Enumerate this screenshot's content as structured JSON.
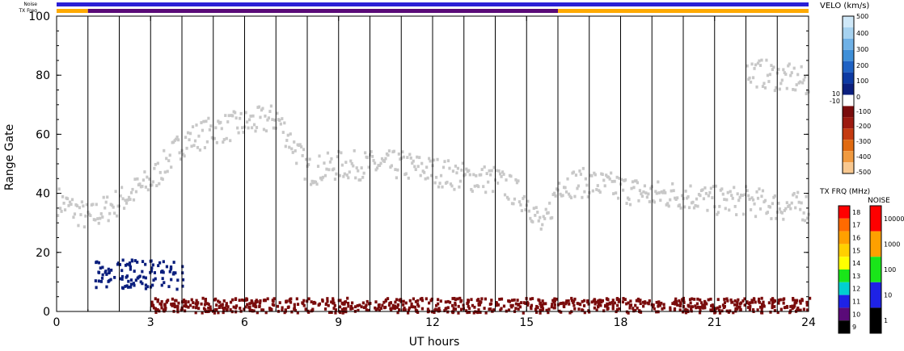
{
  "header": {
    "noise_label": "Noise",
    "txfreq_label": "TX Freq"
  },
  "chart_data": {
    "type": "heatmap",
    "xlabel": "UT hours",
    "ylabel": "Range Gate",
    "xlim": [
      0,
      24
    ],
    "ylim": [
      0,
      100
    ],
    "x_ticks": [
      "0",
      "3",
      "6",
      "9",
      "12",
      "15",
      "18",
      "21",
      "24"
    ],
    "y_ticks": [
      "0",
      "20",
      "40",
      "60",
      "80",
      "100"
    ],
    "scan_boundaries_ut": [
      1,
      2,
      3,
      4,
      5,
      6,
      7,
      8,
      9,
      10,
      11,
      12,
      13,
      14,
      15,
      16,
      17,
      18,
      19,
      20,
      21,
      22,
      23
    ],
    "status_bars": {
      "noise": {
        "color": "#2b1fd6",
        "segments": [
          {
            "from": 0,
            "to": 24
          }
        ]
      },
      "tx_freq": {
        "segments": [
          {
            "from": 0,
            "to": 1,
            "color": "#ffaa00"
          },
          {
            "from": 1,
            "to": 16,
            "color": "#5a0a78"
          },
          {
            "from": 16,
            "to": 24,
            "color": "#ffaa00"
          }
        ]
      }
    },
    "velocity_scale": {
      "title": "VELO (km/s)",
      "labels": [
        "500",
        "400",
        "300",
        "200",
        "100",
        "10",
        "0",
        "-10",
        "-100",
        "-200",
        "-300",
        "-400",
        "-500"
      ],
      "colors_top_to_bottom": [
        "#cfe8f8",
        "#a6d2f0",
        "#6fb1e6",
        "#3f8fd8",
        "#1f62c4",
        "#0d3aa3",
        "#0b1f7e",
        "#ffffff",
        "#7a0c0c",
        "#9c1a10",
        "#c43a10",
        "#e06a10",
        "#f09a40",
        "#f8c890"
      ]
    },
    "tx_freq_scale": {
      "title": "TX FRQ (MHz)",
      "labels": [
        "18",
        "17",
        "16",
        "15",
        "14",
        "13",
        "12",
        "11",
        "10",
        "9"
      ],
      "colors_top_to_bottom": [
        "#ff0000",
        "#ff6a00",
        "#ffa000",
        "#ffd000",
        "#ffff00",
        "#19e619",
        "#00d0d0",
        "#1e22e6",
        "#5a0a78",
        "#000000"
      ]
    },
    "noise_scale": {
      "title": "NOISE",
      "labels": [
        "10000",
        "1000",
        "100",
        "10",
        "1"
      ],
      "colors_top_to_bottom": [
        "#ff0000",
        "#ffa000",
        "#19e619",
        "#1e22e6",
        "#000000"
      ]
    },
    "features": [
      {
        "name": "ground_scatter_band",
        "color": "#c8c8c8",
        "points": [
          [
            0,
            38
          ],
          [
            1,
            32
          ],
          [
            2,
            38
          ],
          [
            3,
            45
          ],
          [
            4,
            58
          ],
          [
            5,
            62
          ],
          [
            6,
            64
          ],
          [
            7,
            66
          ],
          [
            8,
            48
          ],
          [
            9,
            50
          ],
          [
            10,
            50
          ],
          [
            11,
            50
          ],
          [
            12,
            48
          ],
          [
            13,
            46
          ],
          [
            14,
            45
          ],
          [
            15,
            38
          ],
          [
            15.5,
            28
          ],
          [
            16,
            44
          ],
          [
            17,
            44
          ],
          [
            18,
            42
          ],
          [
            19,
            40
          ],
          [
            20,
            40
          ],
          [
            21,
            38
          ],
          [
            22,
            38
          ],
          [
            23,
            36
          ],
          [
            24,
            36
          ]
        ]
      },
      {
        "name": "ground_scatter_far",
        "color": "#c8c8c8",
        "points": [
          [
            22,
            82
          ],
          [
            23,
            80
          ],
          [
            24,
            78
          ]
        ]
      },
      {
        "name": "negative_velocity_near_range",
        "color": "#7a0c0c",
        "range": [
          [
            3,
            0
          ],
          [
            24,
            5
          ]
        ]
      },
      {
        "name": "positive_velocity_low_gates",
        "color": "#0b1f7e",
        "range": [
          [
            1.2,
            8
          ],
          [
            4,
            18
          ]
        ]
      }
    ]
  }
}
